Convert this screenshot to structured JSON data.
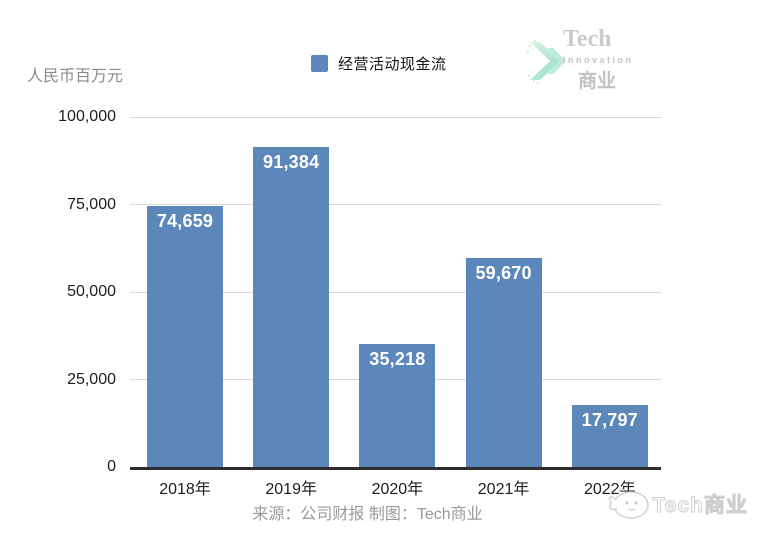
{
  "unit_label": "人民币百万元",
  "legend": {
    "label": "经营活动现金流",
    "swatch_color": "#5b87bb"
  },
  "logo": {
    "name": "Tech",
    "sub": "Innovation",
    "cn": "商业"
  },
  "footer": {
    "source": "来源：公司财报 制图：Tech商业"
  },
  "watermark": {
    "text": "Tech商业"
  },
  "chart_data": {
    "type": "bar",
    "title": "",
    "ylabel": "人民币百万元",
    "xlabel": "",
    "categories": [
      "2018年",
      "2019年",
      "2020年",
      "2021年",
      "2022年"
    ],
    "series": [
      {
        "name": "经营活动现金流",
        "values": [
          74659,
          91384,
          35218,
          59670,
          17797
        ]
      }
    ],
    "value_labels": [
      "74,659",
      "91,384",
      "35,218",
      "59,670",
      "17,797"
    ],
    "ylim": [
      0,
      100000
    ],
    "yticks": [
      0,
      25000,
      50000,
      75000,
      100000
    ],
    "ytick_labels": [
      "0",
      "25,000",
      "50,000",
      "75,000",
      "100,000"
    ],
    "grid": true,
    "legend_position": "top",
    "bar_color": "#5b87bb",
    "axis_color": "#2d2d2d"
  }
}
